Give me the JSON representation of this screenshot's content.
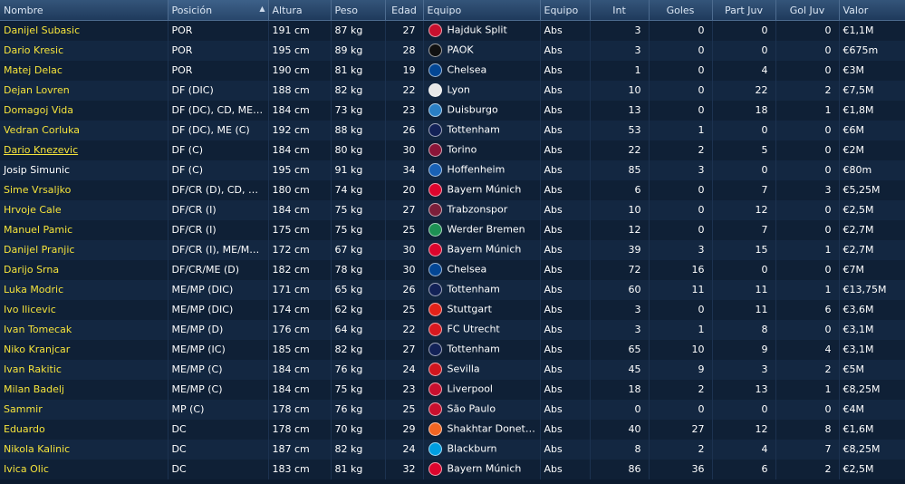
{
  "headers": {
    "name": "Nombre",
    "position": "Posición",
    "height": "Altura",
    "weight": "Peso",
    "age": "Edad",
    "club": "Equipo",
    "squad": "Equipo",
    "caps": "Int",
    "goals": "Goles",
    "apps": "Part Juv",
    "youth_goals": "Gol Juv",
    "value": "Valor"
  },
  "sort_indicator": "▲",
  "players": [
    {
      "name": "Danijel Subasic",
      "position": "POR",
      "height": "191 cm",
      "weight": "87 kg",
      "age": "27",
      "club": "Hajduk Split",
      "crest": "#c8102e",
      "squad": "Abs",
      "caps": "3",
      "goals": "0",
      "apps": "0",
      "youth_goals": "0",
      "value": "€1,1M"
    },
    {
      "name": "Dario Kresic",
      "position": "POR",
      "height": "195 cm",
      "weight": "89 kg",
      "age": "28",
      "club": "PAOK",
      "crest": "#111111",
      "squad": "Abs",
      "caps": "3",
      "goals": "0",
      "apps": "0",
      "youth_goals": "0",
      "value": "€675m"
    },
    {
      "name": "Matej Delac",
      "position": "POR",
      "height": "190 cm",
      "weight": "81 kg",
      "age": "19",
      "club": "Chelsea",
      "crest": "#034694",
      "squad": "Abs",
      "caps": "1",
      "goals": "0",
      "apps": "4",
      "youth_goals": "0",
      "value": "€3M"
    },
    {
      "name": "Dejan Lovren",
      "position": "DF (DIC)",
      "height": "188 cm",
      "weight": "82 kg",
      "age": "22",
      "club": "Lyon",
      "crest": "#e8e8e8",
      "squad": "Abs",
      "caps": "10",
      "goals": "0",
      "apps": "22",
      "youth_goals": "2",
      "value": "€7,5M"
    },
    {
      "name": "Domagoj Vida",
      "position": "DF (DC), CD, ME (C)",
      "height": "184 cm",
      "weight": "73 kg",
      "age": "23",
      "club": "Duisburgo",
      "crest": "#2a7fc4",
      "squad": "Abs",
      "caps": "13",
      "goals": "0",
      "apps": "18",
      "youth_goals": "1",
      "value": "€1,8M"
    },
    {
      "name": "Vedran Corluka",
      "position": "DF (DC), ME (C)",
      "height": "192 cm",
      "weight": "88 kg",
      "age": "26",
      "club": "Tottenham",
      "crest": "#132257",
      "squad": "Abs",
      "caps": "53",
      "goals": "1",
      "apps": "0",
      "youth_goals": "0",
      "value": "€6M"
    },
    {
      "name": "Dario Knezevic",
      "position": "DF (C)",
      "height": "184 cm",
      "weight": "80 kg",
      "age": "30",
      "club": "Torino",
      "crest": "#8a1538",
      "squad": "Abs",
      "caps": "22",
      "goals": "2",
      "apps": "5",
      "youth_goals": "0",
      "value": "€2M"
    },
    {
      "name": "Josip Simunic",
      "position": "DF (C)",
      "height": "195 cm",
      "weight": "91 kg",
      "age": "34",
      "club": "Hoffenheim",
      "crest": "#1961b5",
      "squad": "Abs",
      "caps": "85",
      "goals": "3",
      "apps": "0",
      "youth_goals": "0",
      "value": "€80m"
    },
    {
      "name": "Sime Vrsaljko",
      "position": "DF/CR (D), CD, ME ...",
      "height": "180 cm",
      "weight": "74 kg",
      "age": "20",
      "club": "Bayern Múnich",
      "crest": "#dc052d",
      "squad": "Abs",
      "caps": "6",
      "goals": "0",
      "apps": "7",
      "youth_goals": "3",
      "value": "€5,25M"
    },
    {
      "name": "Hrvoje Cale",
      "position": "DF/CR (I)",
      "height": "184 cm",
      "weight": "75 kg",
      "age": "27",
      "club": "Trabzonspor",
      "crest": "#7b1f3a",
      "squad": "Abs",
      "caps": "10",
      "goals": "0",
      "apps": "12",
      "youth_goals": "0",
      "value": "€2,5M"
    },
    {
      "name": "Manuel Pamic",
      "position": "DF/CR (I)",
      "height": "175 cm",
      "weight": "75 kg",
      "age": "25",
      "club": "Werder Bremen",
      "crest": "#1d9053",
      "squad": "Abs",
      "caps": "12",
      "goals": "0",
      "apps": "7",
      "youth_goals": "0",
      "value": "€2,7M"
    },
    {
      "name": "Danijel Pranjic",
      "position": "DF/CR (I), ME/MP (I...",
      "height": "172 cm",
      "weight": "67 kg",
      "age": "30",
      "club": "Bayern Múnich",
      "crest": "#dc052d",
      "squad": "Abs",
      "caps": "39",
      "goals": "3",
      "apps": "15",
      "youth_goals": "1",
      "value": "€2,7M"
    },
    {
      "name": "Darijo Srna",
      "position": "DF/CR/ME (D)",
      "height": "182 cm",
      "weight": "78 kg",
      "age": "30",
      "club": "Chelsea",
      "crest": "#034694",
      "squad": "Abs",
      "caps": "72",
      "goals": "16",
      "apps": "0",
      "youth_goals": "0",
      "value": "€7M"
    },
    {
      "name": "Luka Modric",
      "position": "ME/MP (DIC)",
      "height": "171 cm",
      "weight": "65 kg",
      "age": "26",
      "club": "Tottenham",
      "crest": "#132257",
      "squad": "Abs",
      "caps": "60",
      "goals": "11",
      "apps": "11",
      "youth_goals": "1",
      "value": "€13,75M"
    },
    {
      "name": "Ivo Ilicevic",
      "position": "ME/MP (DIC)",
      "height": "174 cm",
      "weight": "62 kg",
      "age": "25",
      "club": "Stuttgart",
      "crest": "#e32219",
      "squad": "Abs",
      "caps": "3",
      "goals": "0",
      "apps": "11",
      "youth_goals": "6",
      "value": "€3,6M"
    },
    {
      "name": "Ivan Tomecak",
      "position": "ME/MP (D)",
      "height": "176 cm",
      "weight": "64 kg",
      "age": "22",
      "club": "FC Utrecht",
      "crest": "#d71920",
      "squad": "Abs",
      "caps": "3",
      "goals": "1",
      "apps": "8",
      "youth_goals": "0",
      "value": "€3,1M"
    },
    {
      "name": "Niko Kranjcar",
      "position": "ME/MP (IC)",
      "height": "185 cm",
      "weight": "82 kg",
      "age": "27",
      "club": "Tottenham",
      "crest": "#132257",
      "squad": "Abs",
      "caps": "65",
      "goals": "10",
      "apps": "9",
      "youth_goals": "4",
      "value": "€3,1M"
    },
    {
      "name": "Ivan Rakitic",
      "position": "ME/MP (C)",
      "height": "184 cm",
      "weight": "76 kg",
      "age": "24",
      "club": "Sevilla",
      "crest": "#d0161e",
      "squad": "Abs",
      "caps": "45",
      "goals": "9",
      "apps": "3",
      "youth_goals": "2",
      "value": "€5M"
    },
    {
      "name": "Milan Badelj",
      "position": "ME/MP (C)",
      "height": "184 cm",
      "weight": "75 kg",
      "age": "23",
      "club": "Liverpool",
      "crest": "#c8102e",
      "squad": "Abs",
      "caps": "18",
      "goals": "2",
      "apps": "13",
      "youth_goals": "1",
      "value": "€8,25M"
    },
    {
      "name": "Sammir",
      "position": "MP (C)",
      "height": "178 cm",
      "weight": "76 kg",
      "age": "25",
      "club": "São Paulo",
      "crest": "#c8102e",
      "squad": "Abs",
      "caps": "0",
      "goals": "0",
      "apps": "0",
      "youth_goals": "0",
      "value": "€4M"
    },
    {
      "name": "Eduardo",
      "position": "DC",
      "height": "178 cm",
      "weight": "70 kg",
      "age": "29",
      "club": "Shakhtar Donetsk",
      "crest": "#f26522",
      "squad": "Abs",
      "caps": "40",
      "goals": "27",
      "apps": "12",
      "youth_goals": "8",
      "value": "€1,6M"
    },
    {
      "name": "Nikola Kalinic",
      "position": "DC",
      "height": "187 cm",
      "weight": "82 kg",
      "age": "24",
      "club": "Blackburn",
      "crest": "#009ee0",
      "squad": "Abs",
      "caps": "8",
      "goals": "2",
      "apps": "4",
      "youth_goals": "7",
      "value": "€8,25M"
    },
    {
      "name": "Ivica Olic",
      "position": "DC",
      "height": "183 cm",
      "weight": "81 kg",
      "age": "32",
      "club": "Bayern Múnich",
      "crest": "#dc052d",
      "squad": "Abs",
      "caps": "86",
      "goals": "36",
      "apps": "6",
      "youth_goals": "2",
      "value": "€2,5M"
    }
  ]
}
